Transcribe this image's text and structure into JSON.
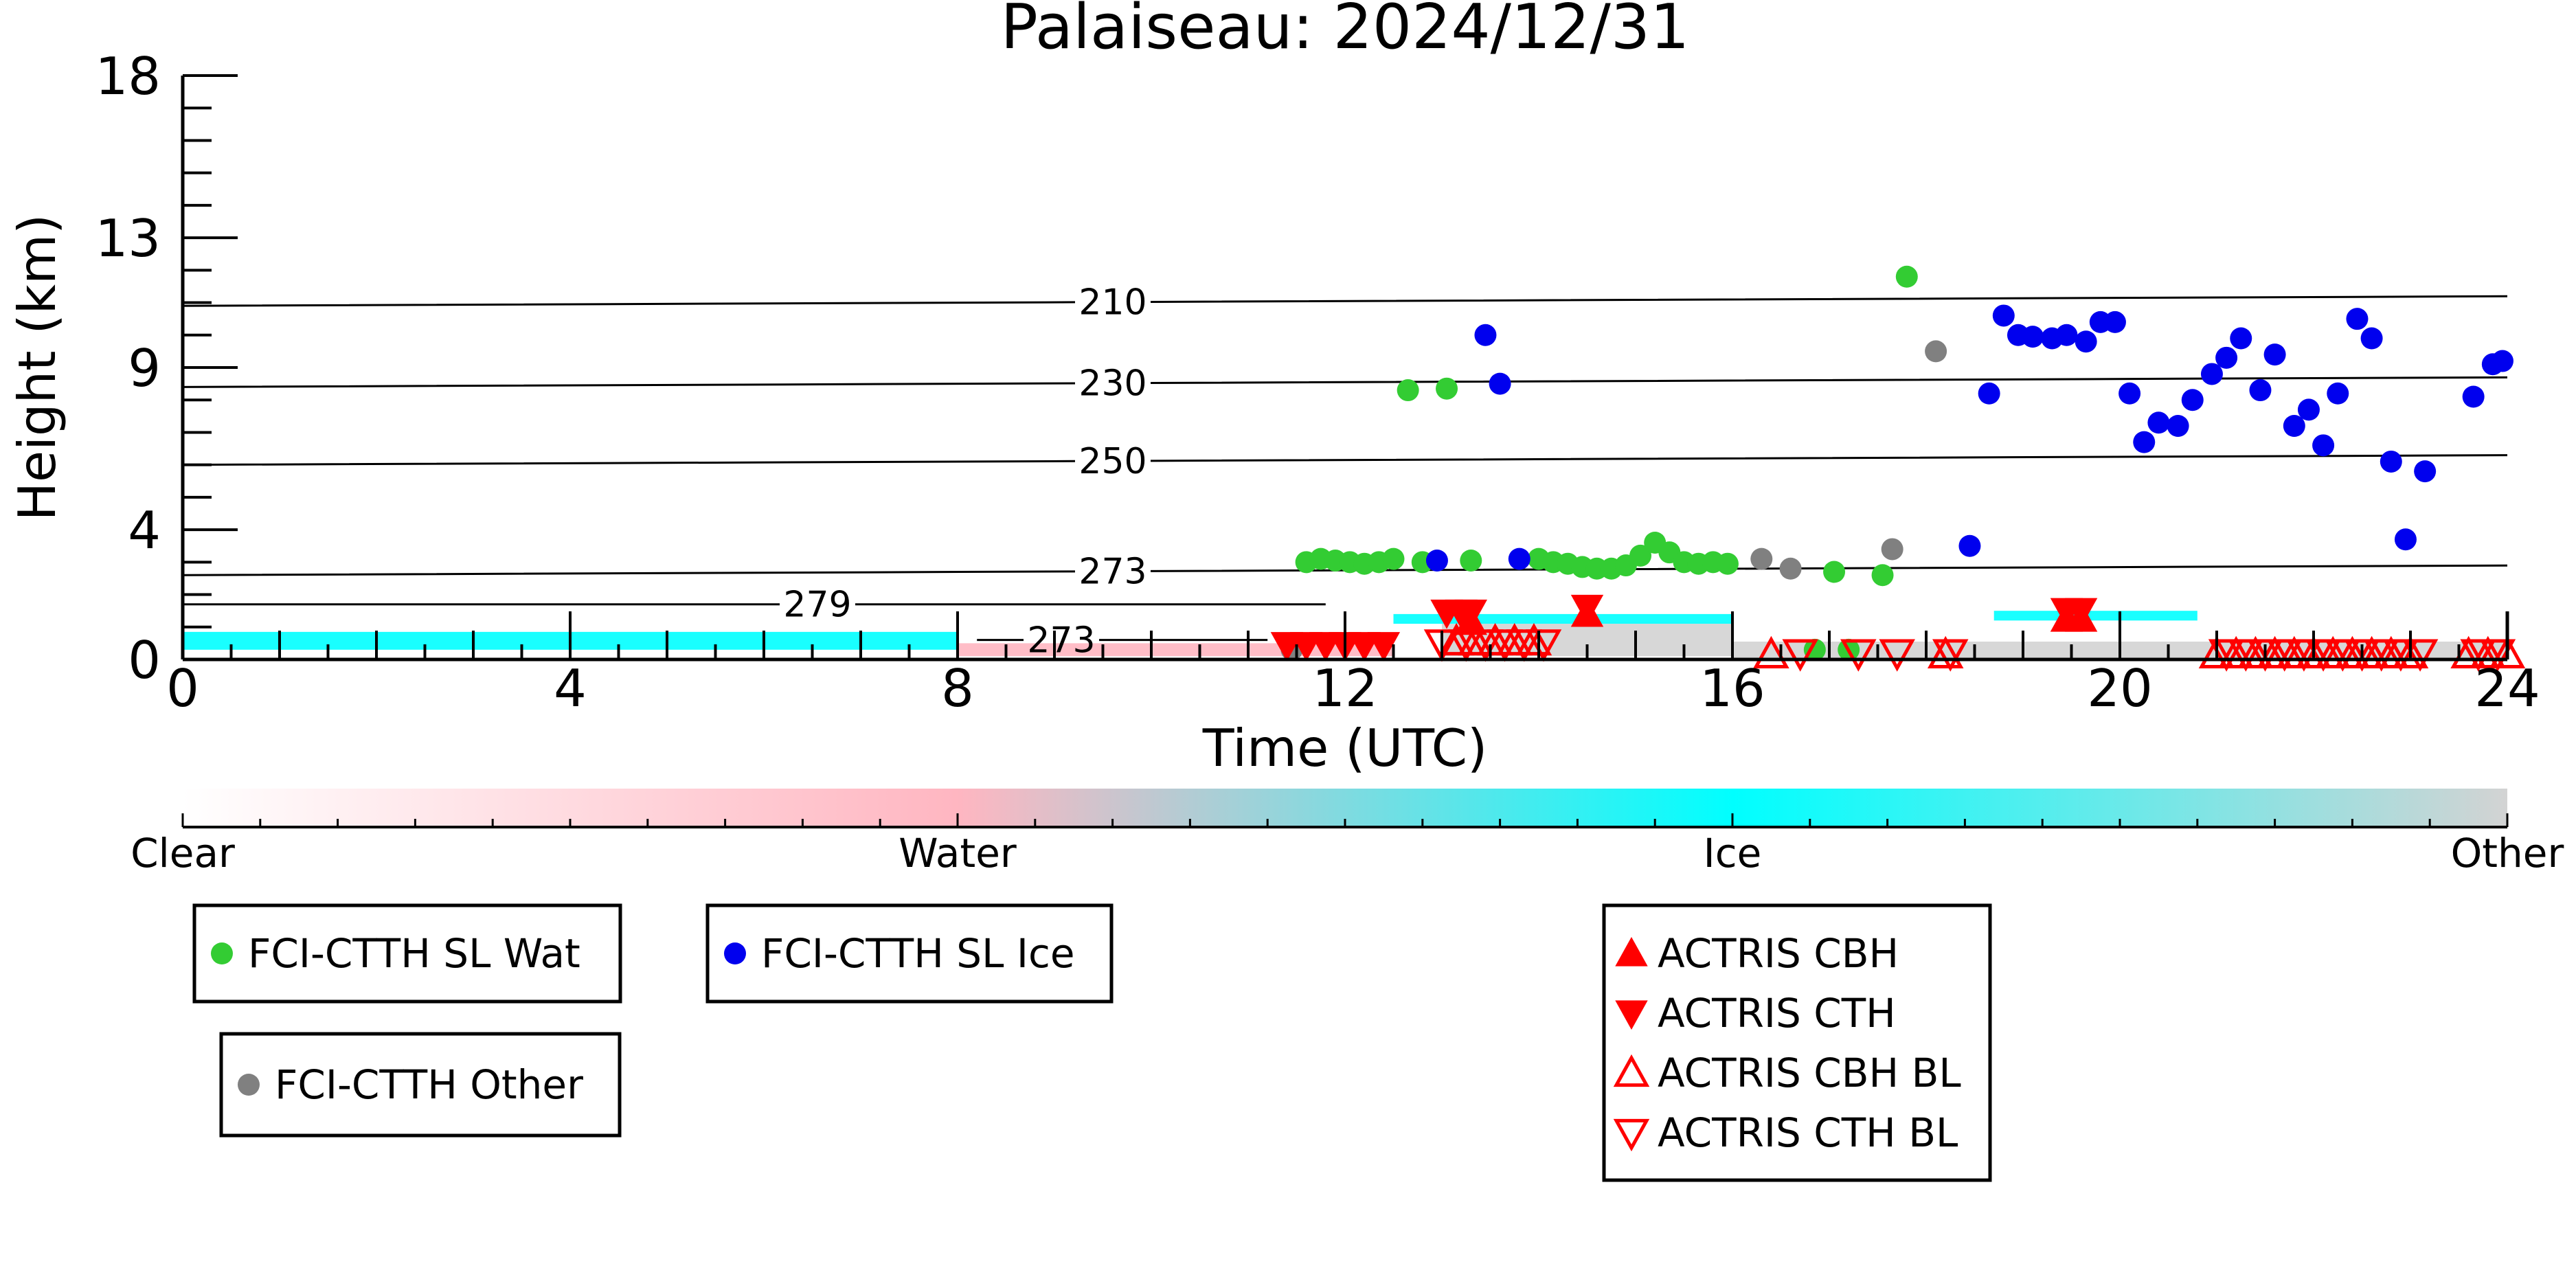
{
  "chart_data": {
    "type": "scatter",
    "title": "Palaiseau: 2024/12/31",
    "xlabel": "Time (UTC)",
    "ylabel": "Height (km)",
    "xlim": [
      0,
      24
    ],
    "ylim": [
      0,
      18
    ],
    "xticks": [
      0,
      4,
      8,
      12,
      16,
      20,
      24
    ],
    "yticks": [
      0,
      4,
      9,
      13,
      18
    ],
    "grid": false,
    "colorbar": {
      "labels": [
        "Clear",
        "Water",
        "Ice",
        "Other"
      ],
      "colors": [
        "#ffffff",
        "#ffb6c1",
        "#00ffff",
        "#d3d3d3"
      ]
    },
    "temperature_contours": [
      {
        "label": "210",
        "height": 10.9
      },
      {
        "label": "230",
        "height": 8.4
      },
      {
        "label": "250",
        "height": 6.0
      },
      {
        "label": "273",
        "height": 2.6
      },
      {
        "label": "279",
        "height": 1.7
      },
      {
        "label": "273",
        "height": 0.6
      }
    ],
    "cloud_bands": [
      {
        "class": "Ice",
        "x": [
          0,
          8
        ],
        "y": [
          0.3,
          0.85
        ]
      },
      {
        "class": "Water",
        "x": [
          8,
          12.5
        ],
        "y": [
          0.1,
          0.5
        ]
      },
      {
        "class": "Ice",
        "x": [
          12.5,
          16
        ],
        "y": [
          1.1,
          1.4
        ]
      },
      {
        "class": "Other",
        "x": [
          13,
          16
        ],
        "y": [
          0.1,
          1.1
        ]
      },
      {
        "class": "Other",
        "x": [
          16,
          24
        ],
        "y": [
          0.05,
          0.55
        ]
      },
      {
        "class": "Ice",
        "x": [
          18.7,
          20.8
        ],
        "y": [
          1.2,
          1.5
        ]
      }
    ],
    "series": [
      {
        "name": "FCI-CTTH SL Wat",
        "marker": "circle",
        "color": "#33cc33",
        "x": [
          11.6,
          11.75,
          11.9,
          12.05,
          12.2,
          12.35,
          12.5,
          12.65,
          12.8,
          13.05,
          13.3,
          14.0,
          14.15,
          14.3,
          14.45,
          14.6,
          14.75,
          14.9,
          15.05,
          15.2,
          15.35,
          15.5,
          15.65,
          15.8,
          15.95,
          16.85,
          17.05,
          17.2,
          17.55,
          17.8
        ],
        "y": [
          3.0,
          3.1,
          3.05,
          3.0,
          2.95,
          3.0,
          3.1,
          8.3,
          3.0,
          8.35,
          3.05,
          3.1,
          3.0,
          2.95,
          2.85,
          2.8,
          2.8,
          2.9,
          3.2,
          3.6,
          3.3,
          3.0,
          2.95,
          3.0,
          2.95,
          0.3,
          2.7,
          0.3,
          2.6,
          11.8
        ]
      },
      {
        "name": "FCI-CTTH SL Ice",
        "marker": "circle",
        "color": "#0000ee",
        "x": [
          12.95,
          13.45,
          13.6,
          13.8,
          18.45,
          18.65,
          18.8,
          18.95,
          19.1,
          19.3,
          19.45,
          19.65,
          19.8,
          19.95,
          20.1,
          20.25,
          20.4,
          20.6,
          20.75,
          20.95,
          21.1,
          21.25,
          21.45,
          21.6,
          21.8,
          21.95,
          22.1,
          22.25,
          22.45,
          22.6,
          22.8,
          22.95,
          23.15,
          23.65,
          23.85,
          23.95
        ],
        "y": [
          3.05,
          10.0,
          8.5,
          3.1,
          3.5,
          8.2,
          10.6,
          10.0,
          9.95,
          9.9,
          10.0,
          9.8,
          10.4,
          10.4,
          8.2,
          6.7,
          7.3,
          7.2,
          8.0,
          8.8,
          9.3,
          9.9,
          8.3,
          9.4,
          7.2,
          7.7,
          6.6,
          8.2,
          10.5,
          9.9,
          6.1,
          3.7,
          5.8,
          8.1,
          9.1,
          9.2
        ]
      },
      {
        "name": "FCI-CTTH Other",
        "marker": "circle",
        "color": "#808080",
        "x": [
          11.45,
          16.3,
          16.6,
          17.65,
          18.1
        ],
        "y": [
          0.3,
          3.1,
          2.8,
          3.4,
          9.5
        ]
      },
      {
        "name": "ACTRIS CBH",
        "marker": "triangle-up",
        "color": "#ff0000",
        "x": [
          13.3,
          14.5,
          19.45,
          19.6
        ],
        "y": [
          1.15,
          1.4,
          1.25,
          1.25
        ]
      },
      {
        "name": "ACTRIS CTH",
        "marker": "triangle-down",
        "color": "#ff0000",
        "x": [
          11.4,
          11.6,
          11.8,
          12.0,
          12.2,
          12.4,
          13.05,
          13.2,
          13.3,
          14.5,
          19.45,
          19.6
        ],
        "y": [
          0.45,
          0.45,
          0.45,
          0.45,
          0.45,
          0.45,
          1.45,
          1.45,
          1.45,
          1.6,
          1.5,
          1.5
        ]
      },
      {
        "name": "ACTRIS CBH BL",
        "marker": "triangle-up-open",
        "color": "#ff0000",
        "x": [
          13.15,
          13.35,
          13.55,
          13.75,
          13.95,
          16.4,
          18.2,
          21.0,
          21.2,
          21.4,
          21.6,
          21.8,
          22.0,
          22.2,
          22.4,
          22.6,
          22.8,
          23.0,
          23.6,
          23.8,
          24.0
        ],
        "y": [
          0.55,
          0.55,
          0.55,
          0.55,
          0.55,
          0.15,
          0.15,
          0.15,
          0.15,
          0.15,
          0.15,
          0.15,
          0.15,
          0.15,
          0.15,
          0.15,
          0.15,
          0.15,
          0.15,
          0.15,
          0.15
        ]
      },
      {
        "name": "ACTRIS CTH BL",
        "marker": "triangle-down-open",
        "color": "#ff0000",
        "x": [
          13.0,
          13.25,
          13.45,
          13.65,
          13.85,
          14.05,
          16.7,
          17.3,
          17.7,
          18.25,
          21.1,
          21.3,
          21.5,
          21.7,
          21.9,
          22.1,
          22.3,
          22.5,
          22.7,
          22.9,
          23.1,
          23.7,
          23.9
        ],
        "y": [
          0.5,
          0.5,
          0.5,
          0.5,
          0.5,
          0.5,
          0.2,
          0.2,
          0.2,
          0.2,
          0.2,
          0.2,
          0.2,
          0.2,
          0.2,
          0.2,
          0.2,
          0.2,
          0.2,
          0.2,
          0.2,
          0.2,
          0.2
        ]
      }
    ]
  }
}
